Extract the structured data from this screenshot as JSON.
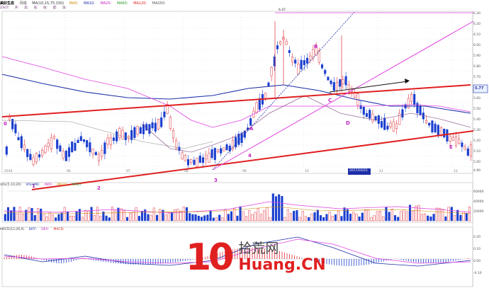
{
  "header": {
    "title": "美好生态",
    "period": "月线",
    "ma_labels": [
      "MA(10,15,75,150)",
      "MA5:",
      "MA10:",
      "MA20:",
      "MA60:",
      "MA120:",
      "MA250:"
    ],
    "sub_items": [
      "ZXGT:",
      "开:",
      "高:",
      "低:",
      "收:",
      "量:",
      "涨:"
    ]
  },
  "price_axis": [
    "6.30",
    "6.20",
    "6.10",
    "6.00",
    "5.90",
    "5.80",
    "5.70",
    "5.60",
    "5.50",
    "5.40",
    "5.30",
    "5.20",
    "5.10",
    "5.00",
    "4.90"
  ],
  "price_tag": "5.77",
  "time_axis": [
    "2016",
    "06",
    "07",
    "08",
    "09",
    "10",
    "11",
    "12"
  ],
  "cursor_date": "2017/03/21",
  "annotations": {
    "n1": "1",
    "n2": "2",
    "n3": "3",
    "n4": "4",
    "nA": "A",
    "nB": "B",
    "nC": "C",
    "nD": "D",
    "nE": "E",
    "zero": "0",
    "top": "6.47"
  },
  "volume": {
    "header": [
      "VOL(5,10,20)",
      "VOLUME:",
      "MA5:",
      "MA10:",
      "MA20:"
    ],
    "axis": [
      "60000",
      "40000",
      "20000"
    ]
  },
  "macd": {
    "header": [
      "MACD(12,26,9)",
      "DIFF:",
      "DEA:",
      "MACD:"
    ],
    "axis": [
      "0.20",
      "0.10",
      "0.00",
      "-0.10"
    ]
  },
  "watermark": {
    "number": "10",
    "cn": "拾荒网",
    "latin": "Huang.CN"
  },
  "colors": {
    "up": "#e0303a",
    "down": "#1a3fcf",
    "trend": "#e02020",
    "magenta": "#e040e0",
    "navy": "#1c2ea8",
    "grid": "#e8e8e8"
  }
}
